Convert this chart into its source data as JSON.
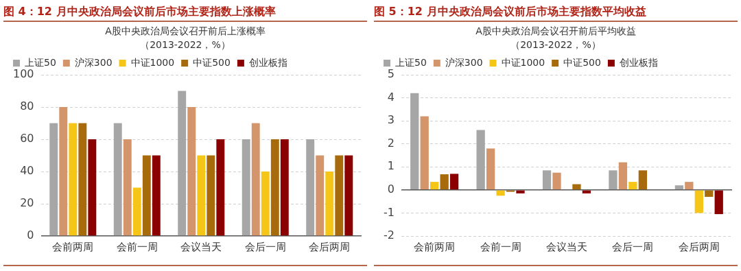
{
  "chart_data": [
    {
      "type": "bar",
      "title": "图 4：12 月中央政治局会议前后市场主要指数上涨概率",
      "subtitle": "A股中央政治局会议召开前后上涨概率（2013-2022，%）",
      "categories": [
        "会前两周",
        "会前一周",
        "会议当天",
        "会后一周",
        "会后两周"
      ],
      "series": [
        {
          "name": "上证50",
          "color": "#a6a6a6",
          "values": [
            70,
            70,
            90,
            60,
            60
          ]
        },
        {
          "name": "沪深300",
          "color": "#d4956a",
          "values": [
            80,
            60,
            80,
            70,
            50
          ]
        },
        {
          "name": "中证1000",
          "color": "#f5c518",
          "values": [
            70,
            30,
            50,
            40,
            40
          ]
        },
        {
          "name": "中证500",
          "color": "#a86b0c",
          "values": [
            70,
            50,
            50,
            60,
            50
          ]
        },
        {
          "name": "创业板指",
          "color": "#8b0000",
          "values": [
            60,
            50,
            60,
            60,
            50
          ]
        }
      ],
      "ylim": [
        0,
        100
      ],
      "yticks": [
        0,
        20,
        40,
        60,
        80,
        100
      ],
      "grid": "y",
      "legend": "top"
    },
    {
      "type": "bar",
      "title": "图 5：12 月中央政治局会议前后市场主要指数平均收益",
      "subtitle": "A股中央政治局会议召开前后平均收益（2013-2022，%）",
      "categories": [
        "会前两周",
        "会前一周",
        "会议当天",
        "会后一周",
        "会后两周"
      ],
      "series": [
        {
          "name": "上证50",
          "color": "#a6a6a6",
          "values": [
            4.2,
            2.6,
            0.85,
            0.85,
            0.2
          ]
        },
        {
          "name": "沪深300",
          "color": "#d4956a",
          "values": [
            3.2,
            1.8,
            0.75,
            1.2,
            0.35
          ]
        },
        {
          "name": "中证1000",
          "color": "#f5c518",
          "values": [
            0.35,
            -0.25,
            0,
            0.35,
            -1.0
          ]
        },
        {
          "name": "中证500",
          "color": "#a86b0c",
          "values": [
            0.68,
            -0.08,
            0.25,
            0.85,
            -0.3
          ]
        },
        {
          "name": "创业板指",
          "color": "#8b0000",
          "values": [
            0.7,
            -0.15,
            -0.15,
            0,
            -1.05
          ]
        }
      ],
      "ylim": [
        -2,
        5
      ],
      "yticks": [
        -2,
        -1,
        0,
        1,
        2,
        3,
        4,
        5
      ],
      "grid": "y",
      "legend": "top"
    }
  ]
}
